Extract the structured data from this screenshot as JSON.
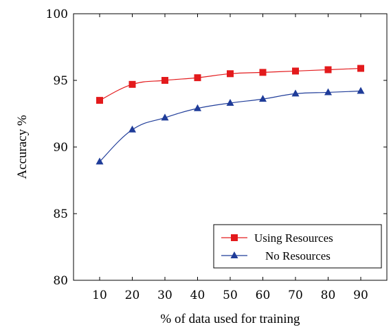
{
  "chart_data": {
    "type": "line",
    "xlabel": "% of data used for training",
    "ylabel": "Accuracy %",
    "x": [
      10,
      20,
      30,
      40,
      50,
      60,
      70,
      80,
      90
    ],
    "xticks": [
      "10",
      "20",
      "30",
      "40",
      "50",
      "60",
      "70",
      "80",
      "90"
    ],
    "yticks": [
      "80",
      "85",
      "90",
      "95",
      "100"
    ],
    "ylim": [
      80,
      100
    ],
    "xlim": [
      2,
      98
    ],
    "grid": false,
    "legend_position": "bottom-right",
    "series": [
      {
        "name": "Using Resources",
        "color": "#e31a1c",
        "marker": "square",
        "values": [
          93.5,
          94.7,
          95.0,
          95.2,
          95.5,
          95.6,
          95.7,
          95.8,
          95.9
        ]
      },
      {
        "name": "No Resources",
        "color": "#1f3c99",
        "marker": "triangle",
        "values": [
          88.9,
          91.3,
          92.2,
          92.9,
          93.3,
          93.6,
          94.0,
          94.1,
          94.2
        ]
      }
    ]
  }
}
